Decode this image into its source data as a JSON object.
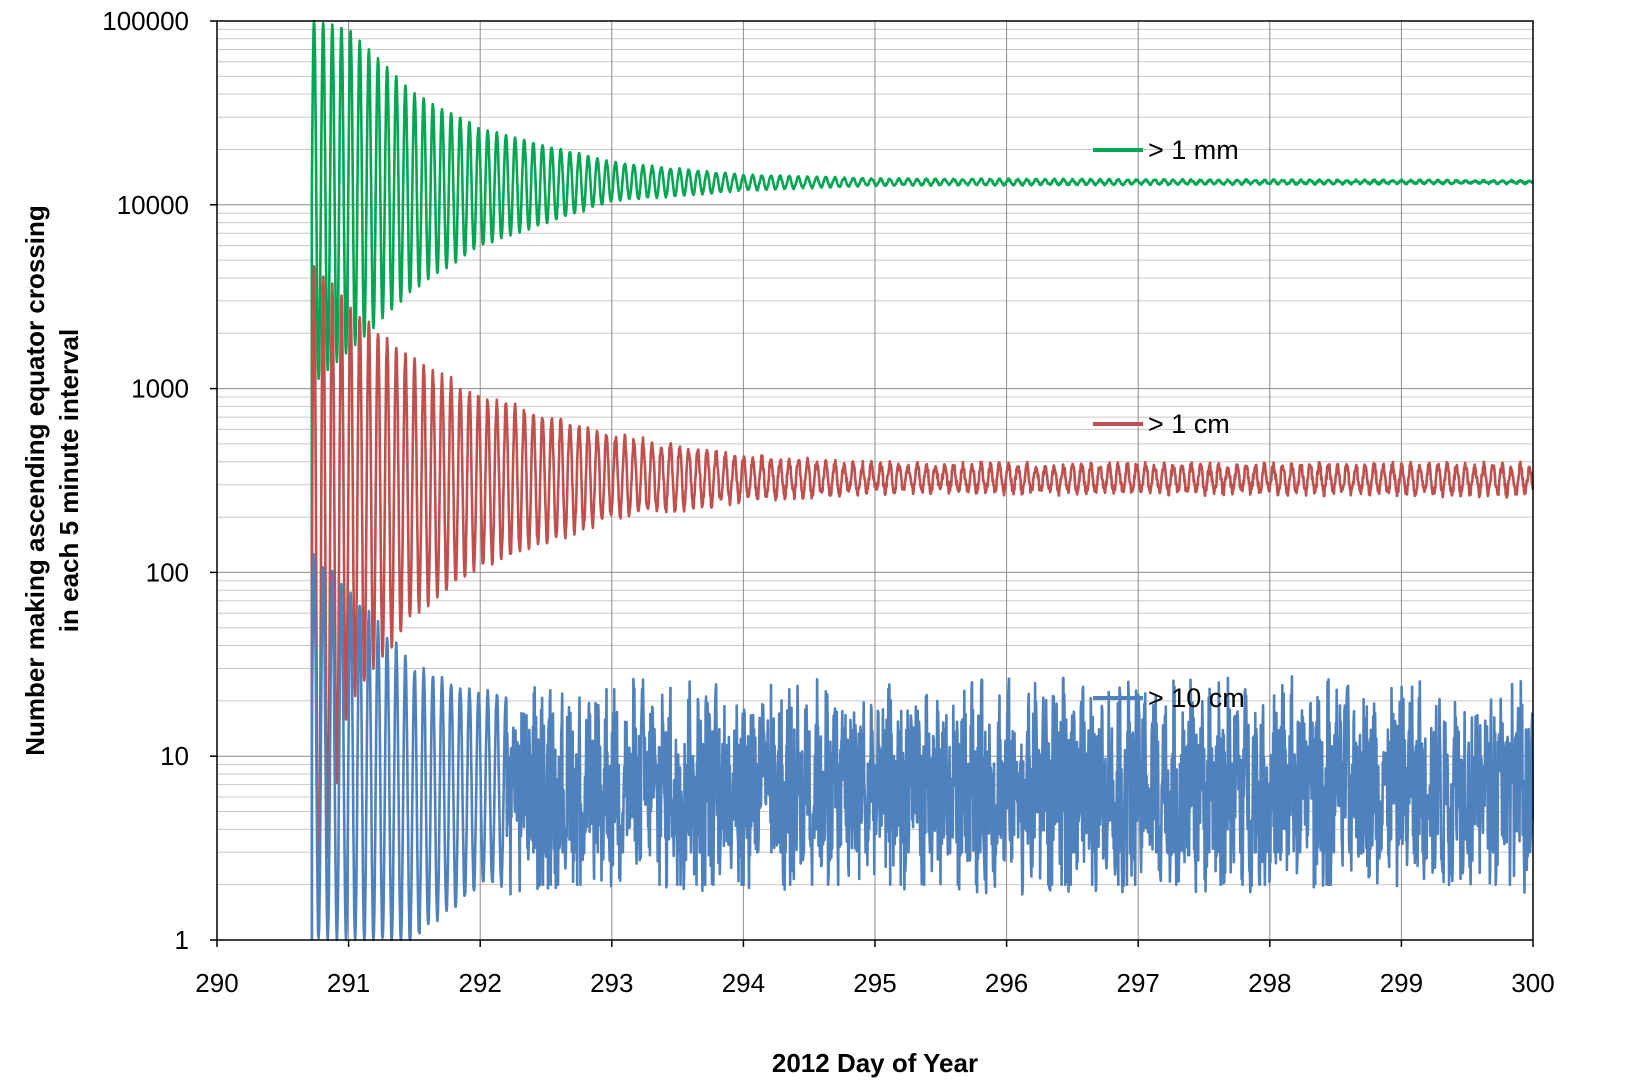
{
  "chart_data": {
    "type": "line",
    "title": "",
    "xlabel": "2012 Day of Year",
    "ylabel_lines": [
      "Number making ascending equator crossing",
      "in each 5 minute interval"
    ],
    "xlim": [
      290,
      300
    ],
    "ylim": [
      1,
      100000
    ],
    "yscale": "log",
    "grid": "on (major and minor)",
    "legend_placement": "inline-right",
    "x_ticks": [
      "290",
      "291",
      "292",
      "293",
      "294",
      "295",
      "296",
      "297",
      "298",
      "299",
      "300"
    ],
    "y_ticks": [
      "1",
      "10",
      "100",
      "1000",
      "10000",
      "100000"
    ],
    "sample_interval_minutes": 5,
    "series": [
      {
        "name": "> 1 mm",
        "color": "#00a651",
        "start_day": 290.72,
        "steady_value": 13300,
        "initial_peak": 100000,
        "initial_trough": 1100,
        "oscillation_period_minutes": 100,
        "oscillation_decay_end_day": 295.5,
        "envelope": [
          {
            "day": 290.75,
            "max": 100000,
            "min": 1100
          },
          {
            "day": 291.0,
            "max": 90000,
            "min": 1600
          },
          {
            "day": 291.5,
            "max": 40000,
            "min": 3500
          },
          {
            "day": 292.0,
            "max": 26000,
            "min": 6000
          },
          {
            "day": 293.0,
            "max": 17000,
            "min": 10500
          },
          {
            "day": 294.0,
            "max": 14500,
            "min": 12000
          },
          {
            "day": 295.0,
            "max": 13800,
            "min": 12800
          },
          {
            "day": 300.0,
            "max": 13500,
            "min": 13100
          }
        ]
      },
      {
        "name": "> 1 cm",
        "color": "#c0504d",
        "start_day": 290.72,
        "steady_value": 320,
        "initial_peak": 4800,
        "initial_trough": 1,
        "oscillation_period_minutes": 100,
        "oscillation_decay_end_day": 295.5,
        "envelope": [
          {
            "day": 290.75,
            "max": 4800,
            "min": 1
          },
          {
            "day": 291.0,
            "max": 2800,
            "min": 20
          },
          {
            "day": 291.5,
            "max": 1400,
            "min": 60
          },
          {
            "day": 292.0,
            "max": 900,
            "min": 110
          },
          {
            "day": 293.0,
            "max": 550,
            "min": 200
          },
          {
            "day": 294.0,
            "max": 420,
            "min": 250
          },
          {
            "day": 295.0,
            "max": 380,
            "min": 280
          },
          {
            "day": 300.0,
            "max": 380,
            "min": 270
          }
        ]
      },
      {
        "name": "> 10 cm",
        "color": "#4f81bd",
        "start_day": 290.72,
        "steady_value": 7,
        "initial_peak": 120,
        "initial_trough": 1,
        "oscillation_period_minutes": 100,
        "oscillation_decay_end_day": 293.5,
        "envelope": [
          {
            "day": 290.75,
            "max": 120,
            "min": 1
          },
          {
            "day": 291.0,
            "max": 80,
            "min": 1
          },
          {
            "day": 291.5,
            "max": 30,
            "min": 1
          },
          {
            "day": 292.0,
            "max": 22,
            "min": 2
          },
          {
            "day": 293.0,
            "max": 18,
            "min": 2
          },
          {
            "day": 300.0,
            "max": 20,
            "min": 1
          }
        ]
      }
    ]
  }
}
